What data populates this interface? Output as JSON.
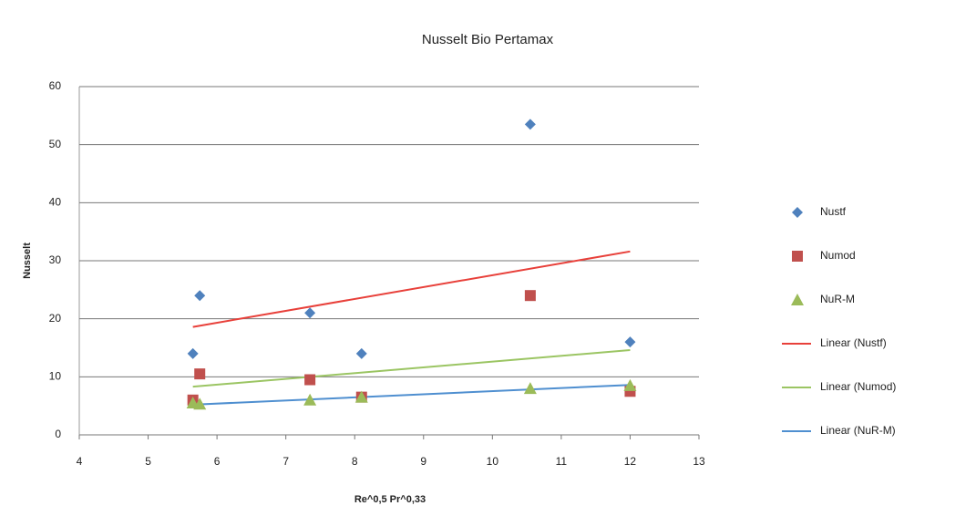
{
  "chart_data": {
    "type": "scatter",
    "title": "Nusselt Bio Pertamax",
    "x_label": "Re^0,5 Pr^0,33",
    "y_label": "Nusselt",
    "x": [
      5.65,
      5.75,
      7.35,
      8.1,
      10.55,
      12
    ],
    "series": [
      {
        "name": "Nustf",
        "color": "#4f81bd",
        "marker": "diamond",
        "values": [
          14,
          24,
          21,
          14,
          53.5,
          16
        ]
      },
      {
        "name": "Numod",
        "color": "#c0504d",
        "marker": "square",
        "values": [
          6,
          10.5,
          9.5,
          6.5,
          24,
          7.5
        ]
      },
      {
        "name": "NuR-M",
        "color": "#9bbb59",
        "marker": "triangle",
        "values": [
          5.5,
          5.3,
          6,
          6.5,
          8,
          8.5
        ]
      }
    ],
    "trendlines": [
      {
        "name": "Linear (Nustf)",
        "color": "#e8403a",
        "x": [
          5.65,
          12
        ],
        "values": [
          18.6,
          31.6
        ]
      },
      {
        "name": "Linear (Numod)",
        "color": "#9bc563",
        "x": [
          5.65,
          12
        ],
        "values": [
          8.3,
          14.6
        ]
      },
      {
        "name": "Linear (NuR-M)",
        "color": "#4f8fd0",
        "x": [
          5.65,
          12
        ],
        "values": [
          5.2,
          8.6
        ]
      }
    ],
    "xlim": [
      4,
      13
    ],
    "xticks": [
      4,
      5,
      6,
      7,
      8,
      9,
      10,
      11,
      12,
      13
    ],
    "ylim": [
      0,
      60
    ],
    "yticks": [
      0,
      10,
      20,
      30,
      40,
      50,
      60
    ],
    "grid": true
  }
}
